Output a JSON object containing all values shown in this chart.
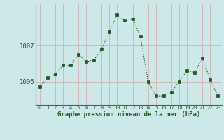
{
  "x": [
    0,
    1,
    2,
    3,
    4,
    5,
    6,
    7,
    8,
    9,
    10,
    11,
    12,
    13,
    14,
    15,
    16,
    17,
    18,
    19,
    20,
    21,
    22,
    23
  ],
  "y": [
    1005.85,
    1006.1,
    1006.2,
    1006.45,
    1006.45,
    1006.75,
    1006.55,
    1006.6,
    1006.9,
    1007.4,
    1007.85,
    1007.7,
    1007.75,
    1007.25,
    1006.0,
    1005.6,
    1005.6,
    1005.7,
    1006.0,
    1006.3,
    1006.25,
    1006.65,
    1006.05,
    1005.6
  ],
  "line_color": "#1a5c1a",
  "marker_color": "#1a5c1a",
  "bg_color": "#cce8e8",
  "vgrid_color": "#d4b8b8",
  "hgrid_color": "#d4b8b8",
  "axis_line_color": "#5a5a5a",
  "label_color": "#1a5c1a",
  "xlabel": "Graphe pression niveau de la mer (hPa)",
  "ylim": [
    1005.35,
    1008.15
  ],
  "yticks": [
    1006,
    1007
  ],
  "xlim": [
    -0.5,
    23.5
  ],
  "xticks": [
    0,
    1,
    2,
    3,
    4,
    5,
    6,
    7,
    8,
    9,
    10,
    11,
    12,
    13,
    14,
    15,
    16,
    17,
    18,
    19,
    20,
    21,
    22,
    23
  ]
}
